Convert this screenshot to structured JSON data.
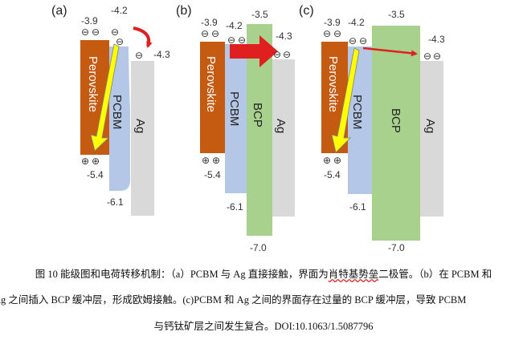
{
  "panels": [
    {
      "label": "(a)",
      "perovskite": {
        "name": "Perovskite",
        "top": "-3.9",
        "bottom": "-5.4"
      },
      "pcbm": {
        "name": "PCBM",
        "top": "-4.2",
        "bottom": "-6.1"
      },
      "ag": {
        "name": "Ag",
        "level": "-4.3"
      },
      "electron_symbol": "⊖",
      "hole_symbol": "⊕"
    },
    {
      "label": "(b)",
      "perovskite": {
        "name": "Perovskite",
        "top": "-3.9",
        "bottom": "-5.4"
      },
      "pcbm": {
        "name": "PCBM",
        "top": "-4.2",
        "bottom": "-6.1"
      },
      "bcp": {
        "name": "BCP",
        "top": "-3.5",
        "bottom": "-7.0"
      },
      "ag": {
        "name": "Ag",
        "level": "-4.3"
      },
      "electron_symbol": "⊖",
      "hole_symbol": "⊕"
    },
    {
      "label": "(c)",
      "perovskite": {
        "name": "Perovskite",
        "top": "-3.9",
        "bottom": "-5.4"
      },
      "pcbm": {
        "name": "PCBM",
        "top": "-4.2",
        "bottom": "-6.1"
      },
      "bcp": {
        "name": "BCP",
        "top": "-3.5",
        "bottom": "-7.0"
      },
      "ag": {
        "name": "Ag",
        "level": "-4.3"
      },
      "electron_symbol": "⊖",
      "hole_symbol": "⊕"
    }
  ],
  "colors": {
    "perovskite": "#c55a11",
    "pcbm": "#b4c7e7",
    "bcp": "#a9d18e",
    "ag": "#d9d9d9",
    "arrow_red": "#e02020",
    "arrow_yellow": "#ffff00"
  },
  "caption": {
    "line1_a": "图 10  能级图和电荷转移机制：（a）PCBM 与 Ag 直接接触，界面为",
    "line1_b": "肖特基势垒",
    "line1_c": "二极管。（b）在 PCBM 和",
    "line2": "Ag 之间插入 BCP 缓冲层，形成欧姆接触。(c)PCBM 和 Ag 之间的界面存在过量的 BCP 缓冲层，导致 PCBM",
    "line3": "与钙钛矿层之间发生复合。DOI:10.1063/1.5087796"
  }
}
